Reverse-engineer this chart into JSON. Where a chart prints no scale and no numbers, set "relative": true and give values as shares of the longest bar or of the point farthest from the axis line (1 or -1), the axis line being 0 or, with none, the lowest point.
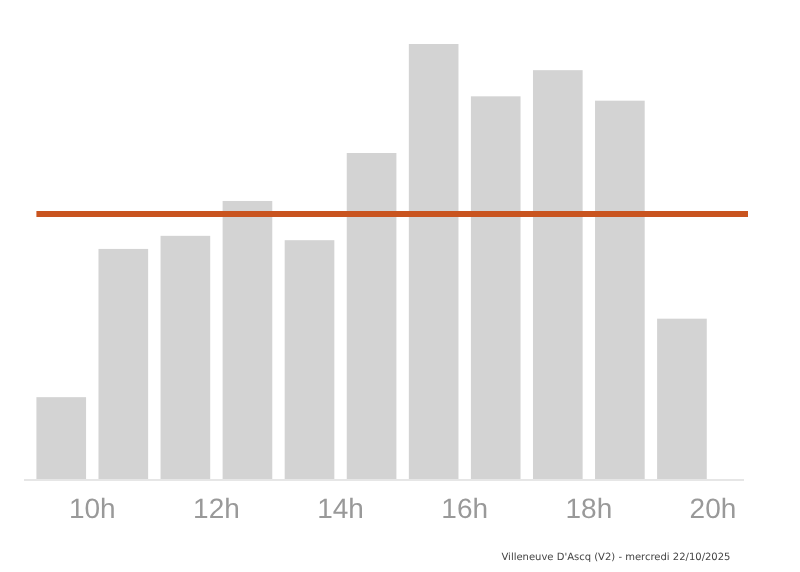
{
  "chart_data": {
    "type": "bar",
    "relative": true,
    "x": [
      9.5,
      10.5,
      11.5,
      12.5,
      13.5,
      14.5,
      15.5,
      16.5,
      17.5,
      18.5,
      19.5
    ],
    "values": [
      0.19,
      0.53,
      0.56,
      0.64,
      0.55,
      0.75,
      1,
      0.88,
      0.94,
      0.87,
      0.37
    ],
    "color": "#d3d3d3",
    "xlim": [
      8.9,
      20.5
    ],
    "xticks": [
      {
        "value": 10,
        "label": "10h"
      },
      {
        "value": 12,
        "label": "12h"
      },
      {
        "value": 14,
        "label": "14h"
      },
      {
        "value": 16,
        "label": "16h"
      },
      {
        "value": 18,
        "label": "18h"
      },
      {
        "value": 20,
        "label": "20h"
      }
    ],
    "ref_lines": [
      {
        "axis": "y",
        "value": 0.61,
        "color": "#c9541f"
      }
    ],
    "annotations": [
      "Villeneuve D'Ascq (V2) - mercredi 22/10/2025"
    ]
  }
}
